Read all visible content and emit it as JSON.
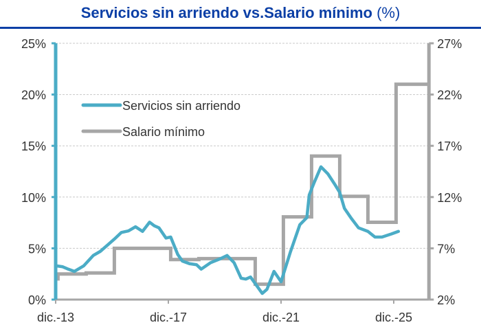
{
  "chart_data": {
    "type": "line",
    "title": "Servicios sin arriendo vs.Salario mínimo",
    "title_unit": "(%)",
    "x_tick_labels": [
      "dic.-13",
      "dic.-17",
      "dic.-21",
      "dic.-25"
    ],
    "x_ticks": [
      "2013-12",
      "2017-12",
      "2021-12",
      "2025-12"
    ],
    "x_range": [
      "2013-12",
      "2027-03"
    ],
    "y_left": {
      "range": [
        0,
        25
      ],
      "ticks": [
        0,
        5,
        10,
        15,
        20,
        25
      ],
      "tick_labels": [
        "0%",
        "5%",
        "10%",
        "15%",
        "20%",
        "25%"
      ]
    },
    "y_right": {
      "range": [
        2,
        27
      ],
      "ticks": [
        2,
        7,
        12,
        17,
        22,
        27
      ],
      "tick_labels": [
        "2%",
        "7%",
        "12%",
        "17%",
        "22%",
        "27%"
      ]
    },
    "grid": "horizontal dashed",
    "legend_position": "upper-left",
    "series": [
      {
        "name": "Servicios sin arriendo",
        "axis": "left",
        "color": "#4BACC6",
        "points": [
          [
            "2013-12",
            3.3
          ],
          [
            "2014-03",
            3.2
          ],
          [
            "2014-05",
            3.0
          ],
          [
            "2014-08",
            2.75
          ],
          [
            "2014-12",
            3.3
          ],
          [
            "2015-04",
            4.3
          ],
          [
            "2015-07",
            4.7
          ],
          [
            "2015-10",
            5.3
          ],
          [
            "2016-01",
            5.9
          ],
          [
            "2016-04",
            6.55
          ],
          [
            "2016-07",
            6.7
          ],
          [
            "2016-10",
            7.1
          ],
          [
            "2017-01",
            6.65
          ],
          [
            "2017-04",
            7.55
          ],
          [
            "2017-06",
            7.2
          ],
          [
            "2017-08",
            7.0
          ],
          [
            "2017-11",
            6.0
          ],
          [
            "2018-01",
            6.1
          ],
          [
            "2018-04",
            4.4
          ],
          [
            "2018-06",
            3.75
          ],
          [
            "2018-09",
            3.5
          ],
          [
            "2018-12",
            3.4
          ],
          [
            "2019-02",
            2.97
          ],
          [
            "2019-06",
            3.6
          ],
          [
            "2019-10",
            3.97
          ],
          [
            "2020-01",
            4.3
          ],
          [
            "2020-04",
            3.6
          ],
          [
            "2020-07",
            2.08
          ],
          [
            "2020-09",
            2.0
          ],
          [
            "2020-11",
            2.2
          ],
          [
            "2021-04",
            0.6
          ],
          [
            "2021-06",
            1.0
          ],
          [
            "2021-09",
            2.75
          ],
          [
            "2021-12",
            1.74
          ],
          [
            "2022-04",
            4.65
          ],
          [
            "2022-08",
            7.3
          ],
          [
            "2022-11",
            8.0
          ],
          [
            "2022-12",
            10.2
          ],
          [
            "2023-02",
            11.35
          ],
          [
            "2023-05",
            12.95
          ],
          [
            "2023-08",
            12.25
          ],
          [
            "2023-11",
            11.2
          ],
          [
            "2024-01",
            10.45
          ],
          [
            "2024-03",
            8.9
          ],
          [
            "2024-06",
            7.9
          ],
          [
            "2024-09",
            7.0
          ],
          [
            "2025-01",
            6.65
          ],
          [
            "2025-04",
            6.1
          ],
          [
            "2025-07",
            6.1
          ],
          [
            "2025-11",
            6.4
          ],
          [
            "2026-02",
            6.65
          ]
        ]
      },
      {
        "name": "Salario mínimo",
        "axis": "right",
        "color": "#A6A6A6",
        "step": true,
        "points": [
          [
            "2013-12",
            4.02
          ],
          [
            "2014-01",
            4.5
          ],
          [
            "2015-01",
            4.6
          ],
          [
            "2016-01",
            7.0
          ],
          [
            "2018-01",
            5.9
          ],
          [
            "2019-01",
            6.0
          ],
          [
            "2021-01",
            3.5
          ],
          [
            "2022-01",
            10.07
          ],
          [
            "2023-01",
            16.0
          ],
          [
            "2024-01",
            12.07
          ],
          [
            "2025-01",
            9.54
          ],
          [
            "2026-01",
            23.0
          ],
          [
            "2027-03",
            23.0
          ]
        ]
      }
    ]
  }
}
